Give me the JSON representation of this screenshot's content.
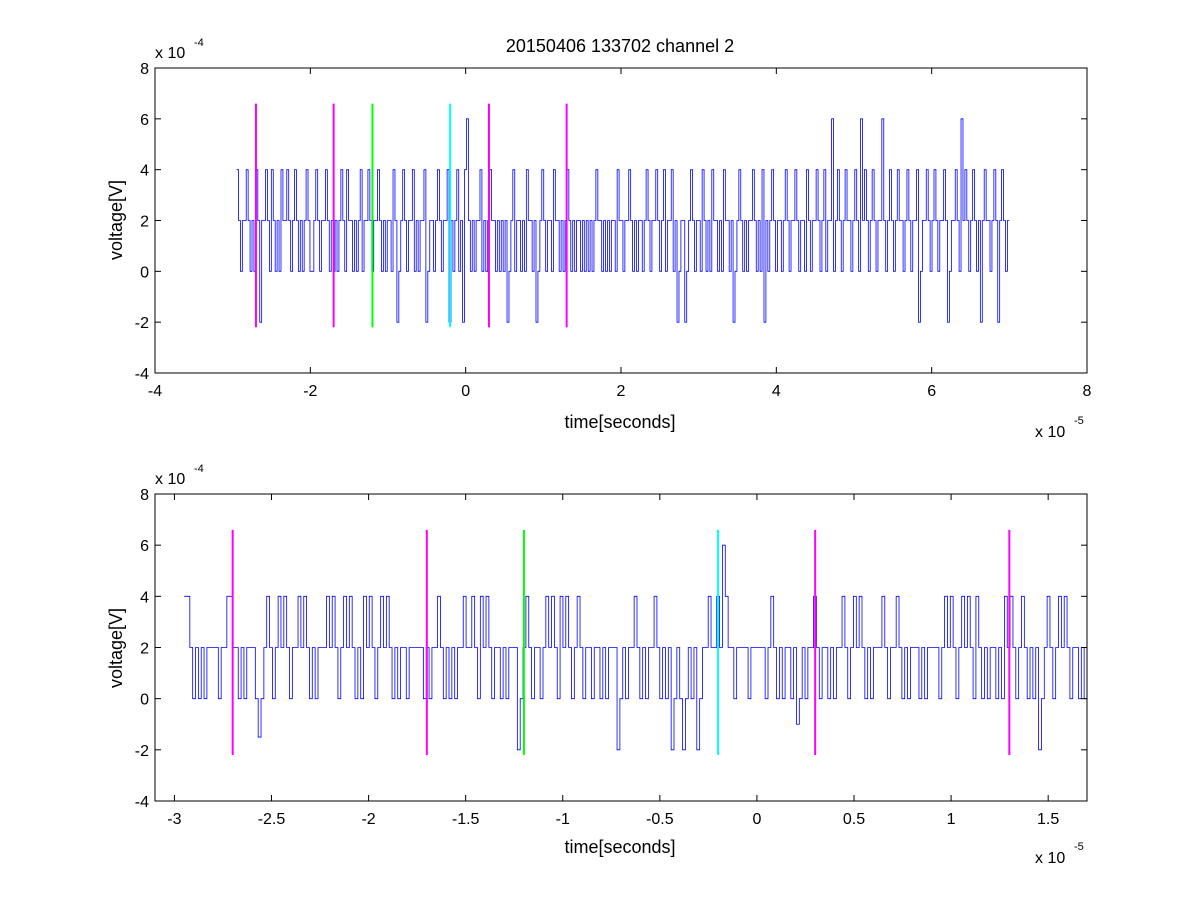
{
  "colors": {
    "background": "#ffffff",
    "trace": "#0000ff",
    "marker_magenta": "#ff00ff",
    "marker_green": "#00ff00",
    "marker_cyan": "#00ffff",
    "axes": "#000000"
  },
  "chart_data": [
    {
      "type": "line",
      "title": "20150406 133702 channel 2",
      "xlabel": "time[seconds]",
      "ylabel": "voltage[V]",
      "x_multiplier": "x 10",
      "x_exponent": "-5",
      "y_multiplier": "x 10",
      "y_exponent": "-4",
      "xlim": [
        -4,
        8
      ],
      "ylim": [
        -4,
        8
      ],
      "x_ticks": [
        -4,
        -2,
        0,
        2,
        4,
        6,
        8
      ],
      "x_tick_labels": [
        "-4",
        "-2",
        "0",
        "2",
        "4",
        "6",
        "8"
      ],
      "y_ticks": [
        -4,
        -2,
        0,
        2,
        4,
        6,
        8
      ],
      "y_tick_labels": [
        "-4",
        "-2",
        "0",
        "2",
        "4",
        "6",
        "8"
      ],
      "grid": false,
      "series": [
        {
          "color": "#0000ff",
          "x_start": -2.95,
          "x_end": 7.0,
          "values": [
            4,
            2,
            0,
            2,
            2,
            4,
            2,
            0,
            2,
            0,
            4,
            2,
            -2,
            2,
            2,
            4,
            2,
            0,
            4,
            2,
            0,
            2,
            0,
            4,
            2,
            2,
            4,
            2,
            0,
            2,
            4,
            2,
            0,
            2,
            0,
            2,
            4,
            2,
            0,
            0,
            2,
            4,
            2,
            0,
            2,
            2,
            4,
            2,
            0,
            2,
            0,
            2,
            0,
            2,
            4,
            2,
            0,
            4,
            2,
            2,
            0,
            2,
            0,
            2,
            4,
            0,
            2,
            2,
            4,
            2,
            0,
            2,
            2,
            4,
            2,
            0,
            2,
            0,
            2,
            2,
            0,
            4,
            2,
            -2,
            0,
            2,
            4,
            2,
            0,
            2,
            2,
            4,
            0,
            2,
            0,
            2,
            2,
            4,
            -2,
            0,
            2,
            2,
            0,
            2,
            4,
            2,
            0,
            2,
            2,
            4,
            -2,
            2,
            0,
            2,
            4,
            0,
            2,
            -2,
            4,
            6,
            2,
            0,
            2,
            0,
            2,
            2,
            4,
            0,
            2,
            0,
            2,
            4,
            2,
            2,
            0,
            2,
            0,
            2,
            0,
            2,
            -2,
            0,
            2,
            4,
            0,
            2,
            2,
            0,
            2,
            0,
            4,
            2,
            2,
            0,
            2,
            -2,
            0,
            2,
            4,
            2,
            0,
            2,
            2,
            0,
            4,
            2,
            2,
            0,
            2,
            0,
            2,
            4,
            2,
            0,
            2,
            0,
            2,
            2,
            0,
            2,
            0,
            2,
            0,
            2,
            0,
            2,
            4,
            2,
            2,
            0,
            2,
            0,
            2,
            0,
            2,
            2,
            0,
            4,
            2,
            2,
            0,
            2,
            2,
            4,
            2,
            0,
            2,
            0,
            2,
            2,
            0,
            2,
            4,
            2,
            0,
            2,
            2,
            4,
            2,
            0,
            2,
            4,
            0,
            2,
            2,
            4,
            0,
            2,
            -2,
            0,
            2,
            2,
            -2,
            0,
            2,
            4,
            2,
            0,
            2,
            2,
            0,
            4,
            2,
            0,
            2,
            0,
            4,
            2,
            2,
            0,
            2,
            0,
            4,
            2,
            2,
            0,
            2,
            -2,
            0,
            2,
            4,
            2,
            0,
            2,
            0,
            2,
            2,
            4,
            2,
            0,
            2,
            0,
            4,
            -2,
            2,
            0,
            2,
            4,
            2,
            0,
            2,
            2,
            0,
            2,
            4,
            2,
            0,
            2,
            2,
            4,
            2,
            0,
            2,
            2,
            0,
            4,
            2,
            0,
            2,
            2,
            4,
            2,
            0,
            2,
            4,
            0,
            2,
            2,
            6,
            0,
            2,
            4,
            2,
            0,
            2,
            4,
            2,
            2,
            0,
            2,
            4,
            2,
            0,
            6,
            2,
            4,
            2,
            0,
            2,
            4,
            2,
            0,
            2,
            2,
            6,
            2,
            0,
            2,
            4,
            2,
            0,
            2,
            4,
            2,
            2,
            0,
            2,
            4,
            2,
            0,
            2,
            2,
            4,
            -2,
            0,
            2,
            2,
            4,
            2,
            0,
            2,
            4,
            2,
            0,
            2,
            2,
            4,
            2,
            -2,
            0,
            2,
            2,
            4,
            2,
            0,
            6,
            2,
            4,
            2,
            0,
            2,
            4,
            2,
            0,
            2,
            -2,
            2,
            4,
            2,
            2,
            0,
            2,
            4,
            2,
            -2,
            2,
            4,
            2,
            0,
            2,
            2
          ]
        }
      ],
      "markers": [
        {
          "x": -2.7,
          "y_range": [
            -2.2,
            6.6
          ],
          "color": "#ff00ff"
        },
        {
          "x": -1.7,
          "y_range": [
            -2.2,
            6.6
          ],
          "color": "#ff00ff"
        },
        {
          "x": -1.2,
          "y_range": [
            -2.2,
            6.6
          ],
          "color": "#00ff00"
        },
        {
          "x": -0.2,
          "y_range": [
            -2.2,
            6.6
          ],
          "color": "#00ffff"
        },
        {
          "x": 0.3,
          "y_range": [
            -2.2,
            6.6
          ],
          "color": "#ff00ff"
        },
        {
          "x": 1.3,
          "y_range": [
            -2.2,
            6.6
          ],
          "color": "#ff00ff"
        }
      ]
    },
    {
      "type": "line",
      "title": "",
      "xlabel": "time[seconds]",
      "ylabel": "voltage[V]",
      "x_multiplier": "x 10",
      "x_exponent": "-5",
      "y_multiplier": "x 10",
      "y_exponent": "-4",
      "xlim": [
        -3.1,
        1.7
      ],
      "ylim": [
        -4,
        8
      ],
      "x_ticks": [
        -3,
        -2.5,
        -2,
        -1.5,
        -1,
        -0.5,
        0,
        0.5,
        1,
        1.5
      ],
      "x_tick_labels": [
        "-3",
        "-2.5",
        "-2",
        "-1.5",
        "-1",
        "-0.5",
        "0",
        "0.5",
        "1",
        "1.5"
      ],
      "y_ticks": [
        -4,
        -2,
        0,
        2,
        4,
        6,
        8
      ],
      "y_tick_labels": [
        "-4",
        "-2",
        "0",
        "2",
        "4",
        "6",
        "8"
      ],
      "grid": false,
      "series": [
        {
          "color": "#0000ff",
          "x_start": -2.95,
          "x_end": 1.7,
          "values": [
            4,
            4,
            2,
            0,
            2,
            0,
            2,
            0,
            2,
            2,
            2,
            2,
            0,
            2,
            2,
            4,
            4,
            2,
            2,
            0,
            2,
            0,
            2,
            2,
            2,
            0,
            -1.5,
            0,
            2,
            4,
            2,
            0,
            2,
            4,
            2,
            4,
            2,
            0,
            2,
            2,
            4,
            2,
            4,
            2,
            0,
            2,
            0,
            2,
            2,
            2,
            4,
            2,
            4,
            2,
            0,
            2,
            4,
            2,
            4,
            2,
            0,
            2,
            0,
            4,
            2,
            4,
            2,
            0,
            2,
            4,
            2,
            4,
            2,
            0,
            2,
            0,
            2,
            2,
            0,
            2,
            2,
            2,
            2,
            2,
            0,
            2,
            0,
            2,
            2,
            4,
            2,
            0,
            2,
            0,
            2,
            0,
            2,
            2,
            4,
            2,
            2,
            4,
            2,
            0,
            4,
            2,
            4,
            2,
            0,
            2,
            2,
            0,
            2,
            0,
            2,
            2,
            2,
            -2,
            0,
            2,
            4,
            2,
            0,
            2,
            2,
            0,
            2,
            4,
            2,
            4,
            2,
            0,
            4,
            2,
            4,
            2,
            0,
            2,
            4,
            2,
            0,
            2,
            2,
            0,
            2,
            2,
            0,
            2,
            0,
            2,
            2,
            2,
            -2,
            0,
            2,
            0,
            2,
            2,
            4,
            2,
            0,
            2,
            0,
            2,
            2,
            4,
            2,
            0,
            2,
            0,
            2,
            -2,
            0,
            2,
            0,
            -2,
            0,
            2,
            0,
            2,
            -2,
            0,
            2,
            2,
            4,
            2,
            2,
            4,
            2,
            6,
            4,
            2,
            2,
            0,
            2,
            2,
            2,
            2,
            0,
            2,
            2,
            2,
            2,
            2,
            0,
            2,
            4,
            2,
            0,
            2,
            0,
            2,
            2,
            0,
            2,
            -1,
            0,
            2,
            0,
            2,
            2,
            4,
            2,
            0,
            2,
            2,
            0,
            2,
            0,
            2,
            2,
            4,
            2,
            0,
            2,
            4,
            2,
            4,
            2,
            0,
            2,
            0,
            2,
            2,
            2,
            4,
            2,
            0,
            2,
            2,
            4,
            2,
            0,
            2,
            0,
            2,
            2,
            2,
            0,
            2,
            0,
            2,
            2,
            2,
            2,
            0,
            2,
            4,
            2,
            4,
            2,
            0,
            2,
            4,
            2,
            4,
            2,
            0,
            4,
            2,
            0,
            2,
            0,
            2,
            2,
            0,
            2,
            0,
            4,
            2,
            4,
            2,
            0,
            2,
            4,
            2,
            0,
            2,
            0,
            2,
            -2,
            0,
            2,
            4,
            2,
            0,
            2,
            4,
            2,
            4,
            2,
            0,
            2,
            2,
            0,
            2,
            0,
            2
          ]
        }
      ],
      "markers": [
        {
          "x": -2.7,
          "y_range": [
            -2.2,
            6.6
          ],
          "color": "#ff00ff"
        },
        {
          "x": -1.7,
          "y_range": [
            -2.2,
            6.6
          ],
          "color": "#ff00ff"
        },
        {
          "x": -1.2,
          "y_range": [
            -2.2,
            6.6
          ],
          "color": "#00ff00"
        },
        {
          "x": -0.2,
          "y_range": [
            -2.2,
            6.6
          ],
          "color": "#00ffff"
        },
        {
          "x": 0.3,
          "y_range": [
            -2.2,
            6.6
          ],
          "color": "#ff00ff"
        },
        {
          "x": 1.3,
          "y_range": [
            -2.2,
            6.6
          ],
          "color": "#ff00ff"
        }
      ]
    }
  ]
}
